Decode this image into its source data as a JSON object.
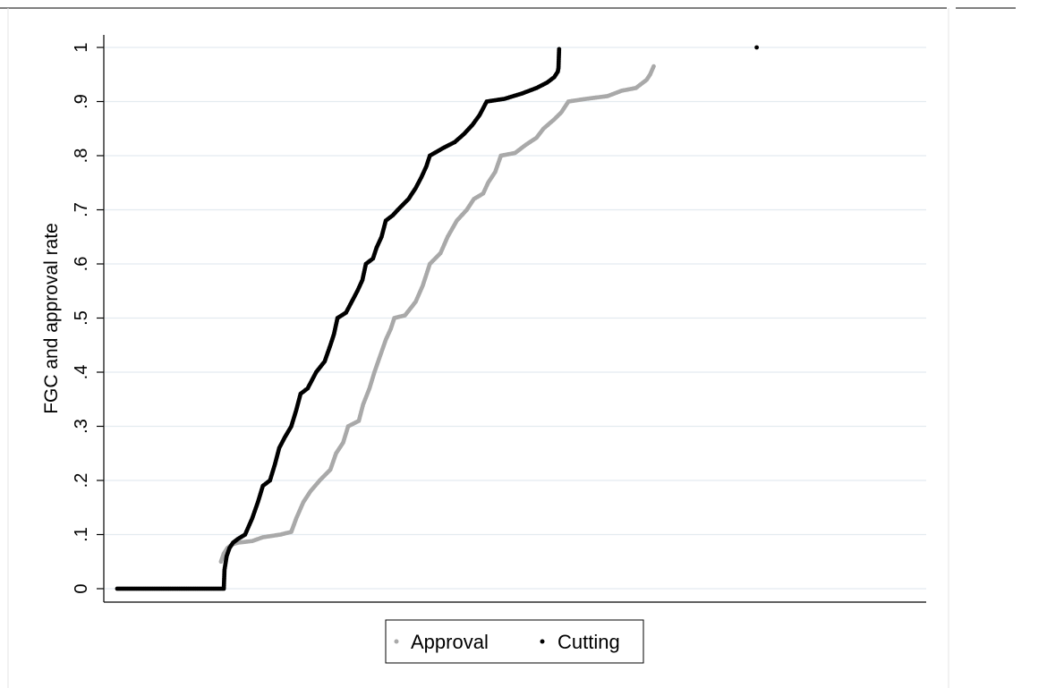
{
  "chart_data": {
    "type": "scatter",
    "title": "",
    "xlabel": "",
    "ylabel": "FGC and approval rate",
    "ylim": [
      0,
      1
    ],
    "yticks": [
      {
        "value": 0,
        "label": "0"
      },
      {
        "value": 0.1,
        "label": ".1"
      },
      {
        "value": 0.2,
        "label": ".2"
      },
      {
        "value": 0.3,
        "label": ".3"
      },
      {
        "value": 0.4,
        "label": ".4"
      },
      {
        "value": 0.5,
        "label": ".5"
      },
      {
        "value": 0.6,
        "label": ".6"
      },
      {
        "value": 0.7,
        "label": ".7"
      },
      {
        "value": 0.8,
        "label": ".8"
      },
      {
        "value": 0.9,
        "label": ".9"
      },
      {
        "value": 1,
        "label": "1"
      }
    ],
    "x_axis_labeled": false,
    "xlim": [
      0,
      1
    ],
    "grid": true,
    "legend_position": "bottom",
    "colors": {
      "Approval": "#a9a9a9",
      "Cutting": "#000000",
      "grid": "#e3ebf0"
    },
    "series": [
      {
        "name": "Approval",
        "points": [
          [
            0.146,
            0.05
          ],
          [
            0.15,
            0.065
          ],
          [
            0.155,
            0.075
          ],
          [
            0.162,
            0.082
          ],
          [
            0.17,
            0.085
          ],
          [
            0.19,
            0.088
          ],
          [
            0.205,
            0.095
          ],
          [
            0.23,
            0.1
          ],
          [
            0.245,
            0.105
          ],
          [
            0.252,
            0.13
          ],
          [
            0.262,
            0.16
          ],
          [
            0.272,
            0.18
          ],
          [
            0.285,
            0.2
          ],
          [
            0.3,
            0.22
          ],
          [
            0.308,
            0.25
          ],
          [
            0.318,
            0.27
          ],
          [
            0.325,
            0.3
          ],
          [
            0.34,
            0.31
          ],
          [
            0.346,
            0.34
          ],
          [
            0.355,
            0.37
          ],
          [
            0.362,
            0.4
          ],
          [
            0.37,
            0.43
          ],
          [
            0.378,
            0.46
          ],
          [
            0.385,
            0.48
          ],
          [
            0.39,
            0.5
          ],
          [
            0.405,
            0.505
          ],
          [
            0.42,
            0.53
          ],
          [
            0.43,
            0.56
          ],
          [
            0.44,
            0.6
          ],
          [
            0.455,
            0.62
          ],
          [
            0.465,
            0.65
          ],
          [
            0.478,
            0.68
          ],
          [
            0.492,
            0.7
          ],
          [
            0.502,
            0.72
          ],
          [
            0.515,
            0.73
          ],
          [
            0.522,
            0.75
          ],
          [
            0.532,
            0.77
          ],
          [
            0.54,
            0.8
          ],
          [
            0.56,
            0.805
          ],
          [
            0.575,
            0.82
          ],
          [
            0.59,
            0.833
          ],
          [
            0.6,
            0.85
          ],
          [
            0.615,
            0.867
          ],
          [
            0.625,
            0.88
          ],
          [
            0.635,
            0.9
          ],
          [
            0.66,
            0.905
          ],
          [
            0.69,
            0.91
          ],
          [
            0.71,
            0.92
          ],
          [
            0.73,
            0.925
          ],
          [
            0.745,
            0.94
          ],
          [
            0.75,
            0.95
          ],
          [
            0.755,
            0.965
          ]
        ]
      },
      {
        "name": "Cutting",
        "points": [
          [
            0.0,
            0.0
          ],
          [
            0.15,
            0.0
          ],
          [
            0.151,
            0.035
          ],
          [
            0.154,
            0.06
          ],
          [
            0.158,
            0.075
          ],
          [
            0.163,
            0.085
          ],
          [
            0.17,
            0.092
          ],
          [
            0.18,
            0.1
          ],
          [
            0.19,
            0.13
          ],
          [
            0.198,
            0.16
          ],
          [
            0.205,
            0.19
          ],
          [
            0.215,
            0.2
          ],
          [
            0.222,
            0.23
          ],
          [
            0.228,
            0.26
          ],
          [
            0.236,
            0.28
          ],
          [
            0.245,
            0.3
          ],
          [
            0.252,
            0.33
          ],
          [
            0.258,
            0.36
          ],
          [
            0.268,
            0.37
          ],
          [
            0.28,
            0.4
          ],
          [
            0.292,
            0.42
          ],
          [
            0.3,
            0.45
          ],
          [
            0.305,
            0.47
          ],
          [
            0.31,
            0.5
          ],
          [
            0.322,
            0.51
          ],
          [
            0.33,
            0.53
          ],
          [
            0.338,
            0.55
          ],
          [
            0.345,
            0.57
          ],
          [
            0.35,
            0.6
          ],
          [
            0.36,
            0.61
          ],
          [
            0.365,
            0.63
          ],
          [
            0.372,
            0.65
          ],
          [
            0.378,
            0.68
          ],
          [
            0.388,
            0.69
          ],
          [
            0.395,
            0.7
          ],
          [
            0.41,
            0.72
          ],
          [
            0.42,
            0.74
          ],
          [
            0.428,
            0.76
          ],
          [
            0.435,
            0.78
          ],
          [
            0.44,
            0.8
          ],
          [
            0.46,
            0.815
          ],
          [
            0.475,
            0.825
          ],
          [
            0.488,
            0.84
          ],
          [
            0.5,
            0.857
          ],
          [
            0.51,
            0.875
          ],
          [
            0.52,
            0.9
          ],
          [
            0.545,
            0.905
          ],
          [
            0.57,
            0.915
          ],
          [
            0.59,
            0.925
          ],
          [
            0.605,
            0.935
          ],
          [
            0.615,
            0.945
          ],
          [
            0.62,
            0.955
          ],
          [
            0.621,
            0.962
          ],
          [
            0.622,
            1.0
          ],
          [
            0.9,
            1.0
          ]
        ]
      }
    ]
  }
}
